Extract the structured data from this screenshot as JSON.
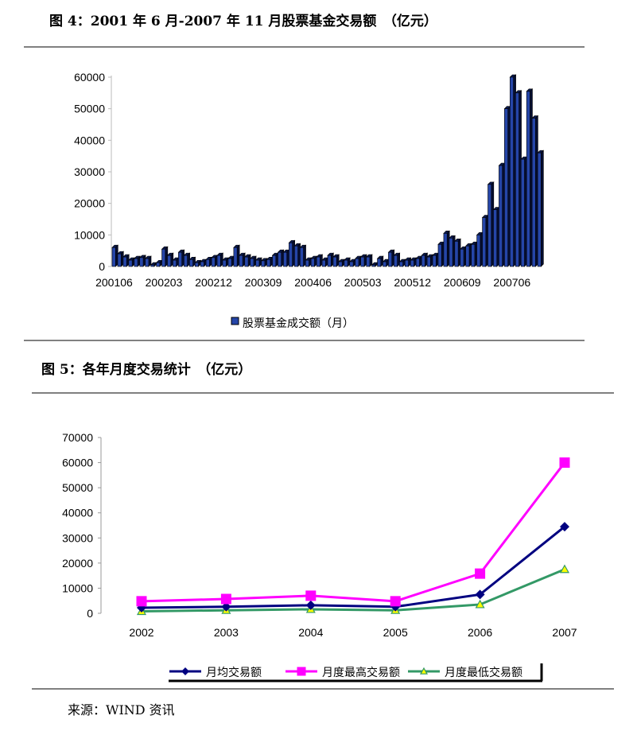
{
  "figure4": {
    "title": "图 4：2001 年 6 月-2007 年 11 月股票基金交易额　（亿元）",
    "chart_data": {
      "type": "bar",
      "title": "2001年6月-2007年11月股票基金交易额（亿元）",
      "legend": "股票基金成交额（月）",
      "legend_position": "bottom",
      "ylim": [
        0,
        60000
      ],
      "yticks": [
        0,
        10000,
        20000,
        30000,
        40000,
        50000,
        60000
      ],
      "xtick_labels": [
        "200106",
        "200203",
        "200212",
        "200309",
        "200406",
        "200503",
        "200512",
        "200609",
        "200706"
      ],
      "start_month": "200106",
      "values": [
        6000,
        4000,
        3000,
        2000,
        2500,
        2800,
        2500,
        500,
        1200,
        5500,
        3500,
        2000,
        4500,
        3500,
        2200,
        1200,
        1500,
        2200,
        2800,
        3500,
        2000,
        2500,
        6000,
        3500,
        3000,
        2500,
        2000,
        1800,
        2200,
        3500,
        4500,
        4500,
        7500,
        6500,
        6000,
        2000,
        2500,
        3000,
        2000,
        3500,
        3000,
        1500,
        2000,
        1500,
        2500,
        3000,
        3000,
        500,
        2500,
        1500,
        4500,
        3500,
        1500,
        2000,
        2000,
        2500,
        3500,
        3000,
        3500,
        7000,
        10500,
        9000,
        8000,
        5500,
        6500,
        7000,
        10000,
        15500,
        26000,
        18000,
        32000,
        50000,
        60000,
        55000,
        34000,
        55500,
        47000,
        36000
      ],
      "color": "#2545a8"
    }
  },
  "figure5": {
    "title": "图 5：各年月度交易统计　（亿元）",
    "chart_data": {
      "type": "line",
      "categories": [
        "2002",
        "2003",
        "2004",
        "2005",
        "2006",
        "2007"
      ],
      "ylim": [
        0,
        70000
      ],
      "yticks": [
        0,
        10000,
        20000,
        30000,
        40000,
        50000,
        60000,
        70000
      ],
      "legend_position": "bottom",
      "series": [
        {
          "name": "月均交易额",
          "values": [
            2200,
            2600,
            3200,
            2600,
            7500,
            34500
          ],
          "color": "#000080",
          "marker": "diamond"
        },
        {
          "name": "月度最高交易额",
          "values": [
            4800,
            5700,
            7000,
            4800,
            15800,
            60000
          ],
          "color": "#ff00ff",
          "marker": "square"
        },
        {
          "name": "月度最低交易额",
          "values": [
            800,
            1200,
            1600,
            1200,
            3500,
            17500
          ],
          "color": "#339966",
          "marker": "triangle"
        }
      ]
    }
  },
  "source": "来源：WIND 资讯"
}
